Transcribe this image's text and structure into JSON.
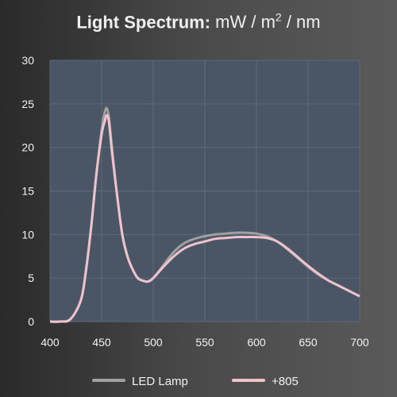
{
  "title": {
    "bold": "Light Spectrum:",
    "unit_prefix": "mW / m",
    "unit_sup": "2",
    "unit_suffix": " / nm"
  },
  "chart_data": {
    "type": "line",
    "title": "Light Spectrum: mW / m2 / nm",
    "xlabel": "",
    "ylabel": "",
    "xlim": [
      400,
      700
    ],
    "ylim": [
      0,
      30
    ],
    "xticks": [
      400,
      450,
      500,
      550,
      600,
      650,
      700
    ],
    "yticks": [
      0,
      5,
      10,
      15,
      20,
      25,
      30
    ],
    "grid": true,
    "legend_position": "bottom",
    "series": [
      {
        "name": "LED Lamp",
        "color": "#a0a0a0",
        "x": [
          400,
          410,
          420,
          430,
          435,
          440,
          445,
          450,
          453,
          455,
          457,
          460,
          465,
          470,
          475,
          480,
          485,
          490,
          495,
          500,
          510,
          520,
          530,
          540,
          550,
          560,
          570,
          580,
          590,
          600,
          610,
          620,
          630,
          640,
          650,
          660,
          670,
          680,
          690,
          700
        ],
        "y": [
          0,
          0,
          0.3,
          2.5,
          6,
          11,
          17,
          22,
          24,
          24.5,
          23.5,
          20,
          14.5,
          10,
          7.5,
          6,
          5,
          4.7,
          4.6,
          5,
          6.5,
          8,
          9,
          9.5,
          9.8,
          10,
          10.1,
          10.2,
          10.2,
          10.1,
          9.8,
          9.2,
          8.3,
          7.3,
          6.3,
          5.4,
          4.7,
          4.1,
          3.5,
          2.9
        ]
      },
      {
        "name": "+805",
        "color": "#f0c2cc",
        "x": [
          400,
          410,
          420,
          430,
          435,
          440,
          445,
          450,
          453,
          455,
          457,
          460,
          465,
          470,
          475,
          480,
          485,
          490,
          495,
          500,
          510,
          520,
          530,
          540,
          550,
          560,
          570,
          580,
          590,
          600,
          610,
          620,
          630,
          640,
          650,
          660,
          670,
          680,
          690,
          700
        ],
        "y": [
          0,
          0,
          0.3,
          2.5,
          6,
          11,
          17,
          21.5,
          23,
          23.7,
          23,
          19.5,
          14.5,
          10,
          7.5,
          6,
          5,
          4.7,
          4.6,
          5,
          6.3,
          7.5,
          8.4,
          8.9,
          9.2,
          9.5,
          9.6,
          9.7,
          9.7,
          9.7,
          9.6,
          9.2,
          8.4,
          7.4,
          6.4,
          5.5,
          4.7,
          4.1,
          3.5,
          2.9
        ]
      }
    ]
  }
}
